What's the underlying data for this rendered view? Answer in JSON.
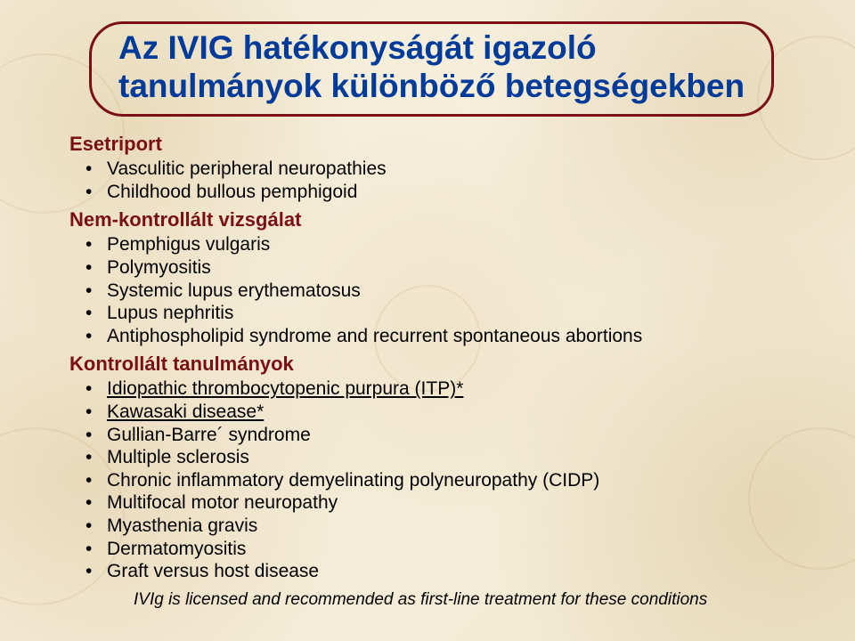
{
  "colors": {
    "background": "#f5eed8",
    "title_text": "#003b9a",
    "title_border": "#7a0f15",
    "heading_text": "#7a0f15",
    "body_text": "#000000"
  },
  "title": {
    "line1": "Az IVIG hatékonyságát igazoló",
    "line2": "tanulmányok különböző betegségekben"
  },
  "sections": [
    {
      "heading": "Esetriport",
      "items": [
        {
          "text": "Vasculitic peripheral neuropathies",
          "underline": false
        },
        {
          "text": "Childhood bullous pemphigoid",
          "underline": false
        }
      ]
    },
    {
      "heading": "Nem-kontrollált vizsgálat",
      "items": [
        {
          "text": "Pemphigus vulgaris",
          "underline": false
        },
        {
          "text": "Polymyositis",
          "underline": false
        },
        {
          "text": "Systemic lupus erythematosus",
          "underline": false
        },
        {
          "text": "Lupus nephritis",
          "underline": false
        },
        {
          "text": "Antiphospholipid syndrome and recurrent spontaneous abortions",
          "underline": false
        }
      ]
    },
    {
      "heading": "Kontrollált tanulmányok",
      "items": [
        {
          "text": "Idiopathic thrombocytopenic purpura (ITP)*",
          "underline": true
        },
        {
          "text": "Kawasaki disease*",
          "underline": true
        },
        {
          "text": "Gullian-Barre´ syndrome",
          "underline": false
        },
        {
          "text": "Multiple sclerosis",
          "underline": false
        },
        {
          "text": "Chronic inflammatory demyelinating polyneuropathy (CIDP)",
          "underline": false
        },
        {
          "text": "Multifocal motor neuropathy",
          "underline": false
        },
        {
          "text": "Myasthenia gravis",
          "underline": false
        },
        {
          "text": "Dermatomyositis",
          "underline": false
        },
        {
          "text": "Graft versus host disease",
          "underline": false
        }
      ]
    }
  ],
  "footnote": "IVIg is licensed and recommended as first-line treatment for these conditions"
}
